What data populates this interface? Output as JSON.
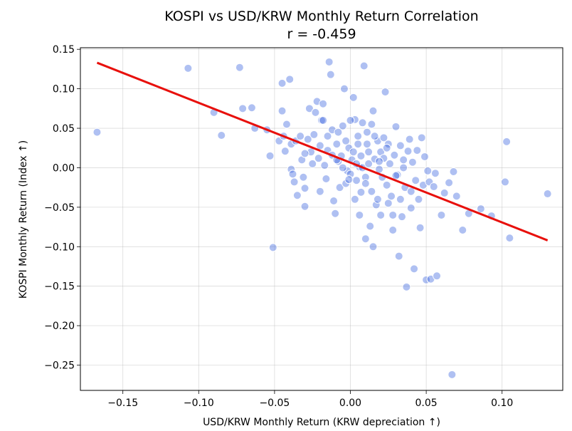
{
  "chart_data": {
    "type": "scatter",
    "title": "KOSPI vs USD/KRW Monthly Return Correlation",
    "subtitle": "r = -0.459",
    "xlabel": "USD/KRW Monthly Return (KRW depreciation ↑)",
    "ylabel": "KOSPI Monthly Return (Index ↑)",
    "xlim": [
      -0.178,
      0.14
    ],
    "ylim": [
      -0.282,
      0.152
    ],
    "grid": true,
    "x_ticks": [
      -0.15,
      -0.1,
      -0.05,
      0.0,
      0.05,
      0.1
    ],
    "x_tick_labels": [
      "−0.15",
      "−0.10",
      "−0.05",
      "0.00",
      "0.05",
      "0.10"
    ],
    "y_ticks": [
      0.15,
      0.1,
      0.05,
      0.0,
      -0.05,
      -0.1,
      -0.15,
      -0.2,
      -0.25
    ],
    "y_tick_labels": [
      "0.15",
      "0.10",
      "0.05",
      "0.00",
      "−0.05",
      "−0.10",
      "−0.15",
      "−0.20",
      "−0.25"
    ],
    "point_color": "#4169e1",
    "regression": {
      "x_start": -0.167,
      "y_start": 0.133,
      "x_end": 0.13,
      "y_end": -0.092,
      "color": "#e8100c"
    },
    "points": [
      [
        -0.167,
        0.045
      ],
      [
        -0.107,
        0.126
      ],
      [
        -0.085,
        0.041
      ],
      [
        -0.073,
        0.127
      ],
      [
        -0.071,
        0.075
      ],
      [
        -0.065,
        0.076
      ],
      [
        -0.063,
        0.05
      ],
      [
        -0.055,
        0.048
      ],
      [
        -0.053,
        0.015
      ],
      [
        -0.051,
        -0.101
      ],
      [
        -0.047,
        0.034
      ],
      [
        -0.045,
        0.107
      ],
      [
        -0.045,
        0.072
      ],
      [
        -0.044,
        0.04
      ],
      [
        -0.043,
        0.021
      ],
      [
        -0.042,
        0.055
      ],
      [
        -0.04,
        0.112
      ],
      [
        -0.039,
        0.03
      ],
      [
        -0.039,
        -0.002
      ],
      [
        -0.038,
        -0.008
      ],
      [
        -0.037,
        -0.018
      ],
      [
        -0.036,
        0.034
      ],
      [
        -0.035,
        -0.035
      ],
      [
        -0.033,
        0.04
      ],
      [
        -0.032,
        0.01
      ],
      [
        -0.031,
        -0.012
      ],
      [
        -0.03,
        -0.026
      ],
      [
        -0.03,
        -0.049
      ],
      [
        -0.028,
        0.036
      ],
      [
        -0.027,
        0.075
      ],
      [
        -0.026,
        0.02
      ],
      [
        -0.024,
        0.042
      ],
      [
        -0.023,
        0.07
      ],
      [
        -0.022,
        0.084
      ],
      [
        -0.021,
        0.012
      ],
      [
        -0.02,
        0.028
      ],
      [
        -0.019,
        0.06
      ],
      [
        -0.018,
        0.081
      ],
      [
        -0.017,
        0.003
      ],
      [
        -0.016,
        -0.014
      ],
      [
        -0.015,
        0.022
      ],
      [
        -0.014,
        0.134
      ],
      [
        -0.013,
        0.118
      ],
      [
        -0.012,
        0.048
      ],
      [
        -0.011,
        -0.042
      ],
      [
        -0.01,
        -0.058
      ],
      [
        -0.009,
        0.03
      ],
      [
        -0.008,
        0.008
      ],
      [
        -0.007,
        -0.025
      ],
      [
        -0.006,
        0.015
      ],
      [
        -0.005,
        0.053
      ],
      [
        -0.004,
        0.1
      ],
      [
        -0.003,
        0.034
      ],
      [
        -0.002,
        -0.004
      ],
      [
        -0.001,
        0.025
      ],
      [
        0.0,
        -0.008
      ],
      [
        0.001,
        0.01
      ],
      [
        0.002,
        0.089
      ],
      [
        0.003,
        0.061
      ],
      [
        0.004,
        -0.016
      ],
      [
        0.005,
        0.03
      ],
      [
        0.006,
        0.001
      ],
      [
        0.007,
        -0.031
      ],
      [
        0.008,
        0.057
      ],
      [
        0.009,
        0.129
      ],
      [
        0.01,
        -0.012
      ],
      [
        0.011,
        0.045
      ],
      [
        0.012,
        0.02
      ],
      [
        0.013,
        -0.074
      ],
      [
        0.014,
        -0.03
      ],
      [
        0.015,
        0.072
      ],
      [
        0.016,
        0.011
      ],
      [
        0.017,
        -0.047
      ],
      [
        0.018,
        0.034
      ],
      [
        0.019,
        -0.002
      ],
      [
        0.02,
        -0.06
      ],
      [
        0.021,
        -0.012
      ],
      [
        0.022,
        0.038
      ],
      [
        0.023,
        0.096
      ],
      [
        0.024,
        -0.022
      ],
      [
        0.025,
        -0.045
      ],
      [
        0.026,
        0.005
      ],
      [
        0.027,
        -0.036
      ],
      [
        0.028,
        -0.079
      ],
      [
        0.029,
        0.016
      ],
      [
        0.03,
        0.052
      ],
      [
        0.031,
        -0.009
      ],
      [
        0.032,
        -0.112
      ],
      [
        0.033,
        0.028
      ],
      [
        0.034,
        -0.062
      ],
      [
        0.035,
        0.0
      ],
      [
        0.036,
        -0.025
      ],
      [
        0.037,
        -0.151
      ],
      [
        0.038,
        0.021
      ],
      [
        0.039,
        0.036
      ],
      [
        0.04,
        -0.051
      ],
      [
        0.041,
        0.007
      ],
      [
        0.042,
        -0.128
      ],
      [
        0.043,
        -0.016
      ],
      [
        0.044,
        0.022
      ],
      [
        0.045,
        -0.04
      ],
      [
        0.046,
        -0.076
      ],
      [
        0.047,
        0.038
      ],
      [
        0.048,
        -0.022
      ],
      [
        0.049,
        0.014
      ],
      [
        0.05,
        -0.142
      ],
      [
        0.051,
        -0.004
      ],
      [
        0.052,
        -0.018
      ],
      [
        0.053,
        -0.141
      ],
      [
        0.055,
        -0.024
      ],
      [
        0.056,
        -0.007
      ],
      [
        0.057,
        -0.137
      ],
      [
        0.06,
        -0.06
      ],
      [
        0.062,
        -0.032
      ],
      [
        0.065,
        -0.019
      ],
      [
        0.067,
        -0.262
      ],
      [
        0.068,
        -0.005
      ],
      [
        0.07,
        -0.036
      ],
      [
        0.074,
        -0.079
      ],
      [
        0.078,
        -0.058
      ],
      [
        0.086,
        -0.052
      ],
      [
        0.093,
        -0.061
      ],
      [
        0.102,
        -0.018
      ],
      [
        0.103,
        0.033
      ],
      [
        0.105,
        -0.089
      ],
      [
        0.13,
        -0.033
      ],
      [
        -0.09,
        0.07
      ],
      [
        -0.02,
        -0.03
      ],
      [
        0.01,
        -0.09
      ],
      [
        0.015,
        -0.1
      ],
      [
        0.005,
        0.04
      ],
      [
        -0.012,
        0.016
      ],
      [
        0.002,
        0.02
      ],
      [
        0.008,
        0.0
      ],
      [
        0.012,
        0.005
      ],
      [
        -0.003,
        -0.02
      ],
      [
        0.02,
        0.02
      ],
      [
        0.025,
        0.03
      ],
      [
        -0.015,
        0.04
      ],
      [
        0.03,
        -0.01
      ],
      [
        0.0,
        0.06
      ],
      [
        -0.008,
        0.045
      ],
      [
        0.018,
        -0.04
      ],
      [
        0.022,
        0.012
      ],
      [
        -0.025,
        0.005
      ],
      [
        0.035,
        0.01
      ],
      [
        0.006,
        -0.06
      ],
      [
        -0.03,
        0.018
      ],
      [
        0.014,
        0.055
      ],
      [
        0.04,
        -0.03
      ],
      [
        0.01,
        -0.02
      ],
      [
        -0.005,
        0.0
      ],
      [
        0.003,
        -0.04
      ],
      [
        0.016,
        0.04
      ],
      [
        0.024,
        0.025
      ],
      [
        -0.018,
        0.06
      ],
      [
        0.028,
        -0.06
      ],
      [
        0.033,
        -0.04
      ],
      [
        0.011,
        0.03
      ],
      [
        -0.009,
        0.01
      ],
      [
        0.019,
        0.008
      ],
      [
        0.007,
        0.015
      ],
      [
        -0.001,
        -0.015
      ],
      [
        0.004,
        0.005
      ]
    ]
  }
}
